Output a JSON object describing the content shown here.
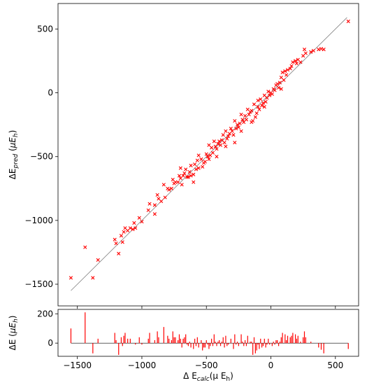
{
  "chart_data": [
    {
      "type": "scatter",
      "ylabel_parts": [
        {
          "t": "ΔE",
          "style": "normal",
          "sub": false
        },
        {
          "t": "pred",
          "style": "italic",
          "sub": true
        },
        {
          "t": " (",
          "style": "normal",
          "sub": false
        },
        {
          "t": "μE",
          "style": "italic",
          "sub": false
        },
        {
          "t": "h",
          "style": "italic",
          "sub": true
        },
        {
          "t": ")",
          "style": "normal",
          "sub": false
        }
      ],
      "xlim": [
        -1650,
        680
      ],
      "ylim": [
        -1670,
        700
      ],
      "xticks": [
        -1500,
        -1000,
        -500,
        0,
        500
      ],
      "yticks": [
        -1500,
        -1000,
        -500,
        0,
        500
      ],
      "ytick_labels": [
        "−1500",
        "−1000",
        "−500",
        "0",
        "500"
      ],
      "grid": false,
      "marker": "x",
      "marker_color": "#ff0000",
      "line_color": "#808080",
      "reference_line": {
        "x": [
          -1550,
          590
        ],
        "y": [
          -1550,
          590
        ]
      },
      "points": [
        [
          -1550,
          -1450
        ],
        [
          -1440,
          -1210
        ],
        [
          -1380,
          -1450
        ],
        [
          -1340,
          -1310
        ],
        [
          -1210,
          -1150
        ],
        [
          -1200,
          -1180
        ],
        [
          -1180,
          -1260
        ],
        [
          -1160,
          -1120
        ],
        [
          -1150,
          -1170
        ],
        [
          -1140,
          -1090
        ],
        [
          -1130,
          -1060
        ],
        [
          -1110,
          -1080
        ],
        [
          -1090,
          -1060
        ],
        [
          -1070,
          -1070
        ],
        [
          -1050,
          -1060
        ],
        [
          -1020,
          -980
        ],
        [
          -1000,
          -1010
        ],
        [
          -950,
          -920
        ],
        [
          -940,
          -870
        ],
        [
          -900,
          -880
        ],
        [
          -880,
          -800
        ],
        [
          -870,
          -830
        ],
        [
          -850,
          -850
        ],
        [
          -830,
          -720
        ],
        [
          -800,
          -750
        ],
        [
          -790,
          -760
        ],
        [
          -770,
          -750
        ],
        [
          -760,
          -680
        ],
        [
          -750,
          -710
        ],
        [
          -740,
          -700
        ],
        [
          -720,
          -700
        ],
        [
          -710,
          -650
        ],
        [
          -700,
          -670
        ],
        [
          -690,
          -720
        ],
        [
          -680,
          -650
        ],
        [
          -670,
          -630
        ],
        [
          -660,
          -600
        ],
        [
          -650,
          -660
        ],
        [
          -640,
          -660
        ],
        [
          -630,
          -620
        ],
        [
          -620,
          -650
        ],
        [
          -600,
          -640
        ],
        [
          -590,
          -560
        ],
        [
          -580,
          -600
        ],
        [
          -570,
          -530
        ],
        [
          -560,
          -590
        ],
        [
          -540,
          -520
        ],
        [
          -530,
          -580
        ],
        [
          -520,
          -550
        ],
        [
          -510,
          -540
        ],
        [
          -500,
          -480
        ],
        [
          -490,
          -500
        ],
        [
          -480,
          -520
        ],
        [
          -470,
          -490
        ],
        [
          -460,
          -430
        ],
        [
          -450,
          -470
        ],
        [
          -440,
          -380
        ],
        [
          -430,
          -420
        ],
        [
          -420,
          -440
        ],
        [
          -410,
          -400
        ],
        [
          -400,
          -380
        ],
        [
          -390,
          -410
        ],
        [
          -380,
          -370
        ],
        [
          -370,
          -330
        ],
        [
          -360,
          -390
        ],
        [
          -350,
          -300
        ],
        [
          -340,
          -360
        ],
        [
          -330,
          -340
        ],
        [
          -320,
          -320
        ],
        [
          -310,
          -280
        ],
        [
          -300,
          -300
        ],
        [
          -290,
          -330
        ],
        [
          -280,
          -220
        ],
        [
          -270,
          -280
        ],
        [
          -260,
          -250
        ],
        [
          -250,
          -270
        ],
        [
          -240,
          -240
        ],
        [
          -230,
          -170
        ],
        [
          -220,
          -210
        ],
        [
          -210,
          -230
        ],
        [
          -200,
          -180
        ],
        [
          -190,
          -210
        ],
        [
          -180,
          -130
        ],
        [
          -170,
          -170
        ],
        [
          -160,
          -150
        ],
        [
          -150,
          -140
        ],
        [
          -140,
          -220
        ],
        [
          -130,
          -90
        ],
        [
          -120,
          -190
        ],
        [
          -110,
          -160
        ],
        [
          -100,
          -110
        ],
        [
          -90,
          -130
        ],
        [
          -80,
          -50
        ],
        [
          -70,
          -100
        ],
        [
          -60,
          -80
        ],
        [
          -50,
          -20
        ],
        [
          -40,
          -70
        ],
        [
          -30,
          -40
        ],
        [
          -20,
          10
        ],
        [
          -10,
          -20
        ],
        [
          0,
          0
        ],
        [
          10,
          -10
        ],
        [
          20,
          30
        ],
        [
          30,
          20
        ],
        [
          40,
          60
        ],
        [
          50,
          70
        ],
        [
          60,
          40
        ],
        [
          70,
          80
        ],
        [
          80,
          120
        ],
        [
          90,
          160
        ],
        [
          100,
          100
        ],
        [
          110,
          170
        ],
        [
          120,
          140
        ],
        [
          130,
          180
        ],
        [
          150,
          190
        ],
        [
          160,
          210
        ],
        [
          170,
          240
        ],
        [
          190,
          250
        ],
        [
          200,
          230
        ],
        [
          210,
          260
        ],
        [
          230,
          240
        ],
        [
          250,
          290
        ],
        [
          260,
          340
        ],
        [
          270,
          310
        ],
        [
          310,
          320
        ],
        [
          330,
          330
        ],
        [
          370,
          340
        ],
        [
          390,
          345
        ],
        [
          410,
          340
        ],
        [
          600,
          560
        ],
        [
          -280,
          -390
        ],
        [
          -420,
          -500
        ],
        [
          -600,
          -700
        ],
        [
          -820,
          -820
        ],
        [
          -150,
          -230
        ],
        [
          -50,
          -110
        ],
        [
          -700,
          -590
        ],
        [
          -350,
          -420
        ],
        [
          -230,
          -300
        ],
        [
          -480,
          -410
        ],
        [
          -560,
          -490
        ],
        [
          -100,
          -60
        ],
        [
          -900,
          -950
        ],
        [
          -1060,
          -1020
        ],
        [
          80,
          30
        ],
        [
          -620,
          -570
        ]
      ]
    },
    {
      "type": "bar",
      "ylabel_parts": [
        {
          "t": "ΔE (",
          "style": "normal",
          "sub": false
        },
        {
          "t": "μE",
          "style": "italic",
          "sub": false
        },
        {
          "t": "h",
          "style": "italic",
          "sub": true
        },
        {
          "t": ")",
          "style": "normal",
          "sub": false
        }
      ],
      "xlabel_parts": [
        {
          "t": "Δ E",
          "style": "normal",
          "sub": false
        },
        {
          "t": "calc",
          "style": "italic",
          "sub": true
        },
        {
          "t": "(μ E",
          "style": "normal",
          "sub": false
        },
        {
          "t": "h",
          "style": "normal",
          "sub": true
        },
        {
          "t": ")",
          "style": "normal",
          "sub": false
        }
      ],
      "xlim": [
        -1650,
        680
      ],
      "ylim": [
        -90,
        230
      ],
      "xticks": [
        -1500,
        -1000,
        -500,
        0,
        500
      ],
      "xtick_labels": [
        "−1500",
        "−1000",
        "−500",
        "0",
        "500"
      ],
      "yticks": [
        0,
        200
      ],
      "ytick_labels": [
        "0",
        "200"
      ],
      "bar_color": "#ff0000",
      "x": [
        -1550,
        -1440,
        -1380,
        -1340,
        -1210,
        -1200,
        -1180,
        -1160,
        -1150,
        -1140,
        -1130,
        -1110,
        -1090,
        -1070,
        -1050,
        -1020,
        -1000,
        -950,
        -940,
        -900,
        -880,
        -870,
        -850,
        -830,
        -800,
        -790,
        -770,
        -760,
        -750,
        -740,
        -720,
        -710,
        -700,
        -690,
        -680,
        -670,
        -660,
        -650,
        -640,
        -630,
        -620,
        -600,
        -590,
        -580,
        -570,
        -560,
        -540,
        -530,
        -520,
        -510,
        -500,
        -490,
        -480,
        -470,
        -460,
        -450,
        -440,
        -430,
        -420,
        -410,
        -400,
        -390,
        -380,
        -370,
        -360,
        -350,
        -340,
        -330,
        -320,
        -310,
        -300,
        -290,
        -280,
        -270,
        -260,
        -250,
        -240,
        -230,
        -220,
        -210,
        -200,
        -190,
        -180,
        -170,
        -160,
        -150,
        -140,
        -130,
        -120,
        -110,
        -100,
        -90,
        -80,
        -70,
        -60,
        -50,
        -40,
        -30,
        -20,
        -10,
        0,
        10,
        20,
        30,
        40,
        50,
        60,
        70,
        80,
        90,
        100,
        110,
        120,
        130,
        150,
        160,
        170,
        190,
        200,
        210,
        230,
        250,
        260,
        270,
        310,
        330,
        370,
        390,
        410,
        600
      ],
      "values": [
        100,
        210,
        -70,
        30,
        70,
        20,
        -80,
        40,
        -20,
        50,
        70,
        30,
        30,
        0,
        -10,
        40,
        -10,
        30,
        70,
        20,
        80,
        40,
        0,
        110,
        50,
        30,
        20,
        80,
        40,
        40,
        20,
        60,
        30,
        -30,
        30,
        40,
        60,
        -10,
        -20,
        10,
        -30,
        -40,
        30,
        -20,
        40,
        -30,
        20,
        -50,
        -30,
        -30,
        20,
        -10,
        -40,
        -20,
        30,
        -20,
        60,
        10,
        -20,
        10,
        20,
        -20,
        10,
        40,
        -30,
        50,
        -20,
        -10,
        0,
        30,
        0,
        -40,
        60,
        -10,
        10,
        -20,
        0,
        60,
        10,
        -20,
        20,
        -20,
        50,
        0,
        10,
        10,
        -80,
        40,
        -70,
        -50,
        -10,
        -40,
        30,
        -30,
        -20,
        30,
        -30,
        -10,
        30,
        -10,
        0,
        -20,
        10,
        -10,
        20,
        20,
        -20,
        10,
        40,
        70,
        0,
        60,
        20,
        50,
        40,
        50,
        70,
        60,
        30,
        50,
        10,
        40,
        80,
        40,
        10,
        0,
        -30,
        -45,
        -70,
        -40
      ]
    }
  ]
}
